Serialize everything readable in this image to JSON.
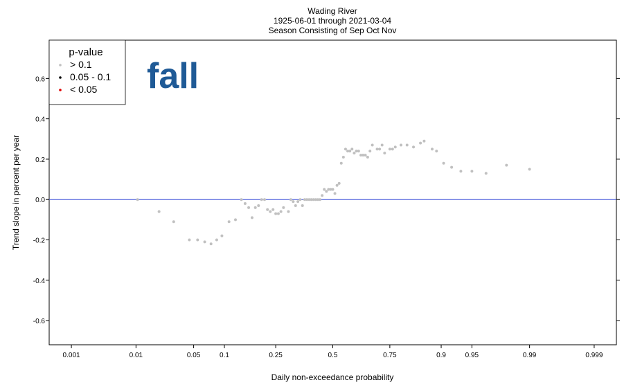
{
  "chart_data": {
    "type": "scatter",
    "title_lines": [
      "Wading River",
      "1925-06-01 through 2021-03-04",
      "Season Consisting of Sep Oct Nov"
    ],
    "xlabel": "Daily non-exceedance probability",
    "ylabel": "Trend slope in percent per year",
    "x_scale": "normal-probability",
    "xlim": [
      0.0004,
      0.9996
    ],
    "ylim": [
      -0.72,
      0.79
    ],
    "x_ticks": [
      0.001,
      0.01,
      0.05,
      0.1,
      0.25,
      0.5,
      0.75,
      0.9,
      0.95,
      0.99,
      0.999
    ],
    "x_tick_labels": [
      "0.001",
      "0.01",
      "0.05",
      "0.1",
      "0.25",
      "0.5",
      "0.75",
      "0.9",
      "0.95",
      "0.99",
      "0.999"
    ],
    "y_ticks": [
      -0.6,
      -0.4,
      -0.2,
      0.0,
      0.2,
      0.4,
      0.6
    ],
    "y_tick_labels": [
      "-0.6",
      "-0.4",
      "-0.2",
      "0.0",
      "0.2",
      "0.4",
      "0.6"
    ],
    "reference_line": {
      "y": 0,
      "color": "#3b4fd8"
    },
    "grid": false,
    "legend": {
      "placement": "top-left",
      "title": "p-value",
      "entries": [
        {
          "label": "> 0.1",
          "color": "#c0c0c0"
        },
        {
          "label": "0.05 - 0.1",
          "color": "#000000"
        },
        {
          "label": "< 0.05",
          "color": "#e00000"
        }
      ]
    },
    "annotation": {
      "text": "fall",
      "color": "#1f5a96"
    },
    "series": [
      {
        "category": "> 0.1",
        "color": "#c0c0c0",
        "points": [
          [
            0.0105,
            0.0
          ],
          [
            0.02,
            -0.06
          ],
          [
            0.03,
            -0.11
          ],
          [
            0.045,
            -0.2
          ],
          [
            0.055,
            -0.2
          ],
          [
            0.065,
            -0.21
          ],
          [
            0.075,
            -0.22
          ],
          [
            0.085,
            -0.2
          ],
          [
            0.095,
            -0.18
          ],
          [
            0.11,
            -0.11
          ],
          [
            0.125,
            -0.1
          ],
          [
            0.14,
            0.0
          ],
          [
            0.15,
            -0.02
          ],
          [
            0.16,
            -0.04
          ],
          [
            0.17,
            -0.09
          ],
          [
            0.18,
            -0.04
          ],
          [
            0.19,
            -0.03
          ],
          [
            0.2,
            0.0
          ],
          [
            0.21,
            0.0
          ],
          [
            0.22,
            -0.05
          ],
          [
            0.23,
            -0.06
          ],
          [
            0.24,
            -0.05
          ],
          [
            0.25,
            -0.07
          ],
          [
            0.26,
            -0.07
          ],
          [
            0.27,
            -0.06
          ],
          [
            0.28,
            -0.04
          ],
          [
            0.3,
            -0.06
          ],
          [
            0.31,
            0.0
          ],
          [
            0.32,
            -0.01
          ],
          [
            0.33,
            -0.03
          ],
          [
            0.34,
            -0.01
          ],
          [
            0.35,
            0.0
          ],
          [
            0.36,
            -0.03
          ],
          [
            0.37,
            0.0
          ],
          [
            0.38,
            0.0
          ],
          [
            0.39,
            0.0
          ],
          [
            0.4,
            0.0
          ],
          [
            0.41,
            0.0
          ],
          [
            0.42,
            0.0
          ],
          [
            0.43,
            0.0
          ],
          [
            0.44,
            0.0
          ],
          [
            0.45,
            0.02
          ],
          [
            0.46,
            0.05
          ],
          [
            0.47,
            0.04
          ],
          [
            0.48,
            0.05
          ],
          [
            0.49,
            0.05
          ],
          [
            0.5,
            0.05
          ],
          [
            0.51,
            0.03
          ],
          [
            0.52,
            0.07
          ],
          [
            0.53,
            0.08
          ],
          [
            0.54,
            0.18
          ],
          [
            0.55,
            0.21
          ],
          [
            0.56,
            0.25
          ],
          [
            0.57,
            0.24
          ],
          [
            0.58,
            0.24
          ],
          [
            0.59,
            0.25
          ],
          [
            0.6,
            0.23
          ],
          [
            0.61,
            0.24
          ],
          [
            0.62,
            0.24
          ],
          [
            0.63,
            0.22
          ],
          [
            0.64,
            0.22
          ],
          [
            0.65,
            0.22
          ],
          [
            0.66,
            0.21
          ],
          [
            0.67,
            0.24
          ],
          [
            0.68,
            0.27
          ],
          [
            0.7,
            0.25
          ],
          [
            0.71,
            0.25
          ],
          [
            0.72,
            0.27
          ],
          [
            0.73,
            0.23
          ],
          [
            0.75,
            0.25
          ],
          [
            0.76,
            0.25
          ],
          [
            0.77,
            0.26
          ],
          [
            0.79,
            0.27
          ],
          [
            0.81,
            0.27
          ],
          [
            0.83,
            0.26
          ],
          [
            0.85,
            0.28
          ],
          [
            0.86,
            0.29
          ],
          [
            0.88,
            0.25
          ],
          [
            0.89,
            0.24
          ],
          [
            0.905,
            0.18
          ],
          [
            0.92,
            0.16
          ],
          [
            0.935,
            0.14
          ],
          [
            0.95,
            0.14
          ],
          [
            0.965,
            0.13
          ],
          [
            0.98,
            0.17
          ],
          [
            0.99,
            0.15
          ]
        ]
      }
    ]
  }
}
